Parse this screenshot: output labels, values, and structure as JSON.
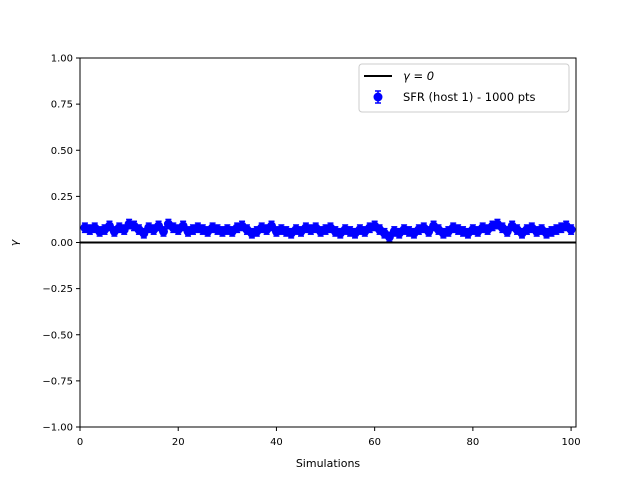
{
  "chart_data": {
    "type": "scatter",
    "title": "",
    "xlabel": "Simulations",
    "ylabel": "γ",
    "xlim": [
      0,
      101
    ],
    "ylim": [
      -1.0,
      1.0
    ],
    "x_ticks": [
      0,
      20,
      40,
      60,
      80,
      100
    ],
    "x_tick_labels": [
      "0",
      "20",
      "40",
      "60",
      "80",
      "100"
    ],
    "y_ticks": [
      -1.0,
      -0.75,
      -0.5,
      -0.25,
      0.0,
      0.25,
      0.5,
      0.75,
      1.0
    ],
    "y_tick_labels": [
      "−1.00",
      "−0.75",
      "−0.50",
      "−0.25",
      "0.00",
      "0.25",
      "0.50",
      "0.75",
      "1.00"
    ],
    "grid": false,
    "legend_position": "top-right",
    "reference_line": {
      "name": "γ = 0",
      "y": 0.0,
      "color": "#000000"
    },
    "series": [
      {
        "name": "SFR (host 1) - 1000 pts",
        "color": "#0000ff",
        "error_bar": 0.025,
        "x": [
          1,
          2,
          3,
          4,
          5,
          6,
          7,
          8,
          9,
          10,
          11,
          12,
          13,
          14,
          15,
          16,
          17,
          18,
          19,
          20,
          21,
          22,
          23,
          24,
          25,
          26,
          27,
          28,
          29,
          30,
          31,
          32,
          33,
          34,
          35,
          36,
          37,
          38,
          39,
          40,
          41,
          42,
          43,
          44,
          45,
          46,
          47,
          48,
          49,
          50,
          51,
          52,
          53,
          54,
          55,
          56,
          57,
          58,
          59,
          60,
          61,
          62,
          63,
          64,
          65,
          66,
          67,
          68,
          69,
          70,
          71,
          72,
          73,
          74,
          75,
          76,
          77,
          78,
          79,
          80,
          81,
          82,
          83,
          84,
          85,
          86,
          87,
          88,
          89,
          90,
          91,
          92,
          93,
          94,
          95,
          96,
          97,
          98,
          99,
          100
        ],
        "y": [
          0.08,
          0.07,
          0.08,
          0.06,
          0.07,
          0.09,
          0.06,
          0.08,
          0.07,
          0.1,
          0.09,
          0.07,
          0.05,
          0.08,
          0.07,
          0.09,
          0.06,
          0.1,
          0.08,
          0.07,
          0.09,
          0.06,
          0.07,
          0.08,
          0.07,
          0.06,
          0.08,
          0.07,
          0.06,
          0.07,
          0.06,
          0.08,
          0.09,
          0.07,
          0.05,
          0.06,
          0.08,
          0.07,
          0.09,
          0.06,
          0.07,
          0.06,
          0.05,
          0.07,
          0.06,
          0.08,
          0.07,
          0.08,
          0.06,
          0.07,
          0.08,
          0.06,
          0.05,
          0.07,
          0.06,
          0.05,
          0.07,
          0.06,
          0.08,
          0.09,
          0.07,
          0.05,
          0.03,
          0.06,
          0.05,
          0.07,
          0.06,
          0.05,
          0.07,
          0.08,
          0.06,
          0.09,
          0.07,
          0.05,
          0.06,
          0.08,
          0.07,
          0.06,
          0.05,
          0.07,
          0.06,
          0.08,
          0.07,
          0.09,
          0.1,
          0.08,
          0.06,
          0.09,
          0.07,
          0.05,
          0.07,
          0.08,
          0.06,
          0.07,
          0.05,
          0.06,
          0.07,
          0.08,
          0.09,
          0.07
        ]
      }
    ]
  }
}
